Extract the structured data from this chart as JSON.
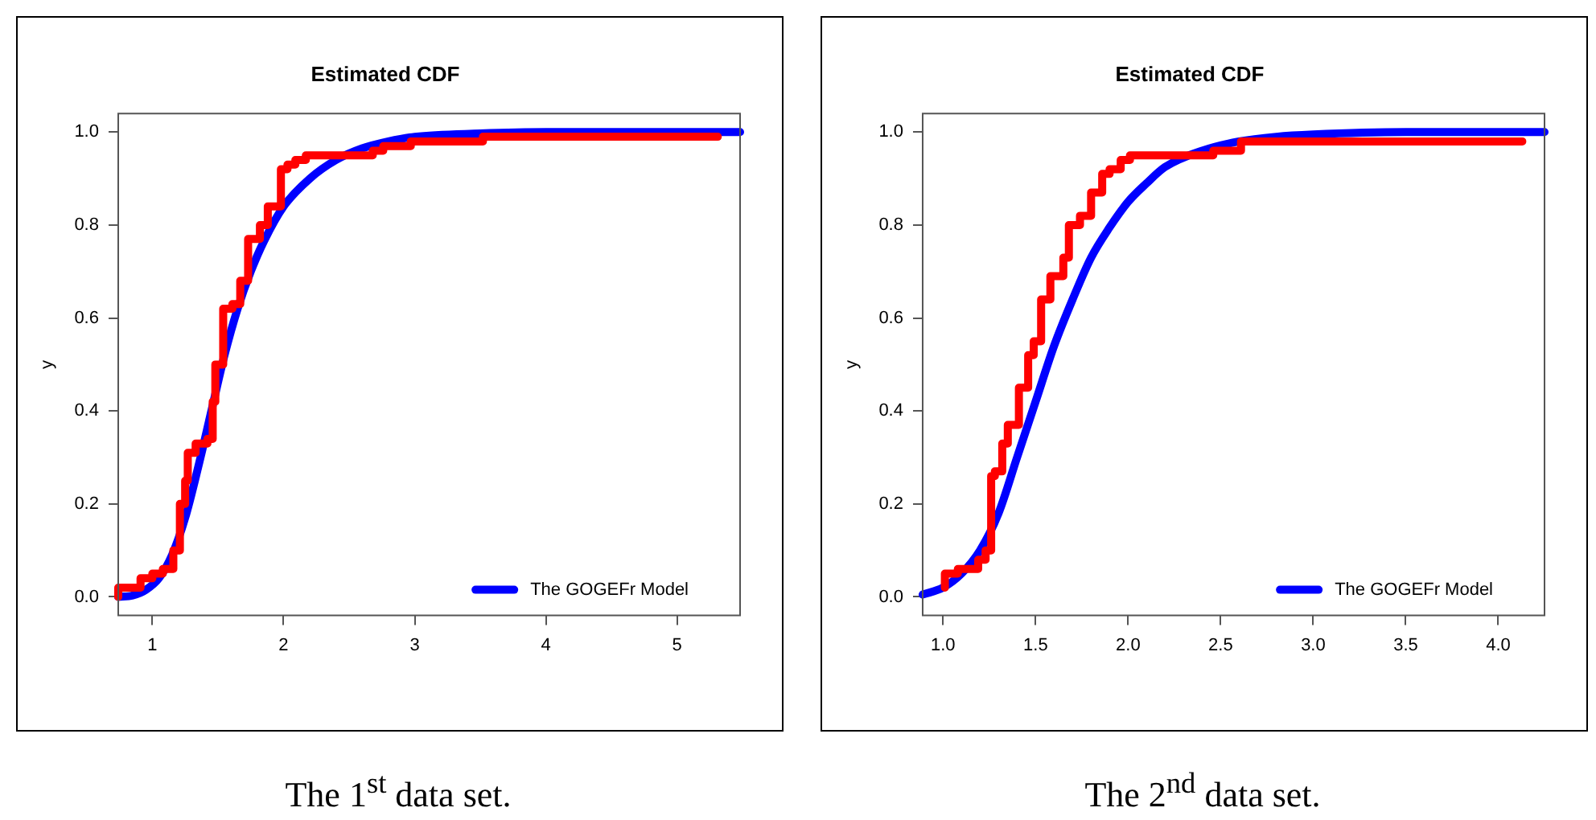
{
  "chart_data": [
    {
      "type": "line",
      "title": "Estimated CDF",
      "ylabel": "y",
      "annotations": [
        "The 1$^{st}$ data set."
      ],
      "xlim": [
        0.74,
        5.48
      ],
      "ylim": [
        -0.04,
        1.04
      ],
      "xticks": [
        1,
        2,
        3,
        4,
        5
      ],
      "yticks": [
        {
          "value": 0,
          "label": "0.0"
        },
        {
          "value": 0.2,
          "label": "0.2"
        },
        {
          "value": 0.4,
          "label": "0.4"
        },
        {
          "value": 0.6,
          "label": "0.6"
        },
        {
          "value": 0.8,
          "label": "0.8"
        },
        {
          "value": 1,
          "label": "1.0"
        }
      ],
      "grid": false,
      "legend": "bottom right",
      "marker": "none",
      "line_style": "solid",
      "series": [
        {
          "type": "step",
          "color": "#ff0000",
          "x": [
            0.74,
            0.91,
            1.0,
            1.08,
            1.16,
            1.21,
            1.25,
            1.27,
            1.33,
            1.42,
            1.46,
            1.48,
            1.54,
            1.61,
            1.67,
            1.73,
            1.82,
            1.88,
            1.98,
            2.03,
            2.09,
            2.17,
            2.68,
            2.76,
            2.97,
            3.52,
            3.88,
            5.31
          ],
          "values": [
            0,
            0.02,
            0.04,
            0.05,
            0.06,
            0.1,
            0.2,
            0.25,
            0.31,
            0.33,
            0.34,
            0.42,
            0.5,
            0.62,
            0.63,
            0.68,
            0.77,
            0.8,
            0.84,
            0.92,
            0.93,
            0.94,
            0.95,
            0.96,
            0.97,
            0.98,
            0.99,
            0.99
          ]
        },
        {
          "name": "The GOGEFr Model",
          "color": "#0000ff",
          "x": [
            0.74,
            0.85,
            0.95,
            1.05,
            1.15,
            1.25,
            1.35,
            1.45,
            1.55,
            1.65,
            1.75,
            1.85,
            2.0,
            2.2,
            2.4,
            2.6,
            2.8,
            3.0,
            3.5,
            4.0,
            5.48
          ],
          "values": [
            0,
            0.003,
            0.015,
            0.04,
            0.09,
            0.17,
            0.28,
            0.4,
            0.52,
            0.62,
            0.7,
            0.765,
            0.84,
            0.9,
            0.94,
            0.965,
            0.98,
            0.99,
            0.997,
            1,
            1
          ]
        }
      ]
    },
    {
      "type": "line",
      "title": "Estimated CDF",
      "ylabel": "y",
      "annotations": [
        "The 2$^{nd}$ data set."
      ],
      "xlim": [
        0.89,
        4.25
      ],
      "ylim": [
        -0.04,
        1.04
      ],
      "xticks": [
        {
          "value": 1,
          "label": "1.0"
        },
        {
          "value": 1.5,
          "label": "1.5"
        },
        {
          "value": 2,
          "label": "2.0"
        },
        {
          "value": 2.5,
          "label": "2.5"
        },
        {
          "value": 3,
          "label": "3.0"
        },
        {
          "value": 3.5,
          "label": "3.5"
        },
        {
          "value": 4,
          "label": "4.0"
        }
      ],
      "yticks": [
        {
          "value": 0,
          "label": "0.0"
        },
        {
          "value": 0.2,
          "label": "0.2"
        },
        {
          "value": 0.4,
          "label": "0.4"
        },
        {
          "value": 0.6,
          "label": "0.6"
        },
        {
          "value": 0.8,
          "label": "0.8"
        },
        {
          "value": 1,
          "label": "1.0"
        }
      ],
      "grid": false,
      "legend": "bottom right",
      "marker": "none",
      "line_style": "solid",
      "series": [
        {
          "type": "step",
          "color": "#ff0000",
          "x": [
            1.01,
            1.08,
            1.19,
            1.23,
            1.26,
            1.28,
            1.32,
            1.35,
            1.41,
            1.46,
            1.49,
            1.53,
            1.58,
            1.65,
            1.68,
            1.74,
            1.8,
            1.86,
            1.9,
            1.96,
            2.01,
            2.46,
            2.61,
            3.19,
            4.13
          ],
          "values": [
            0.02,
            0.05,
            0.06,
            0.08,
            0.1,
            0.26,
            0.27,
            0.33,
            0.37,
            0.45,
            0.52,
            0.55,
            0.64,
            0.69,
            0.73,
            0.8,
            0.82,
            0.87,
            0.91,
            0.92,
            0.94,
            0.95,
            0.96,
            0.98,
            0.98
          ]
        },
        {
          "name": "The GOGEFr Model",
          "color": "#0000ff",
          "x": [
            0.89,
            1.0,
            1.1,
            1.2,
            1.3,
            1.4,
            1.5,
            1.6,
            1.7,
            1.8,
            1.9,
            2.0,
            2.1,
            2.2,
            2.4,
            2.6,
            2.8,
            3.0,
            3.5,
            4.25
          ],
          "values": [
            0.005,
            0.02,
            0.05,
            0.1,
            0.18,
            0.3,
            0.42,
            0.54,
            0.64,
            0.73,
            0.795,
            0.85,
            0.89,
            0.925,
            0.96,
            0.98,
            0.99,
            0.995,
            1,
            1
          ]
        }
      ]
    }
  ]
}
